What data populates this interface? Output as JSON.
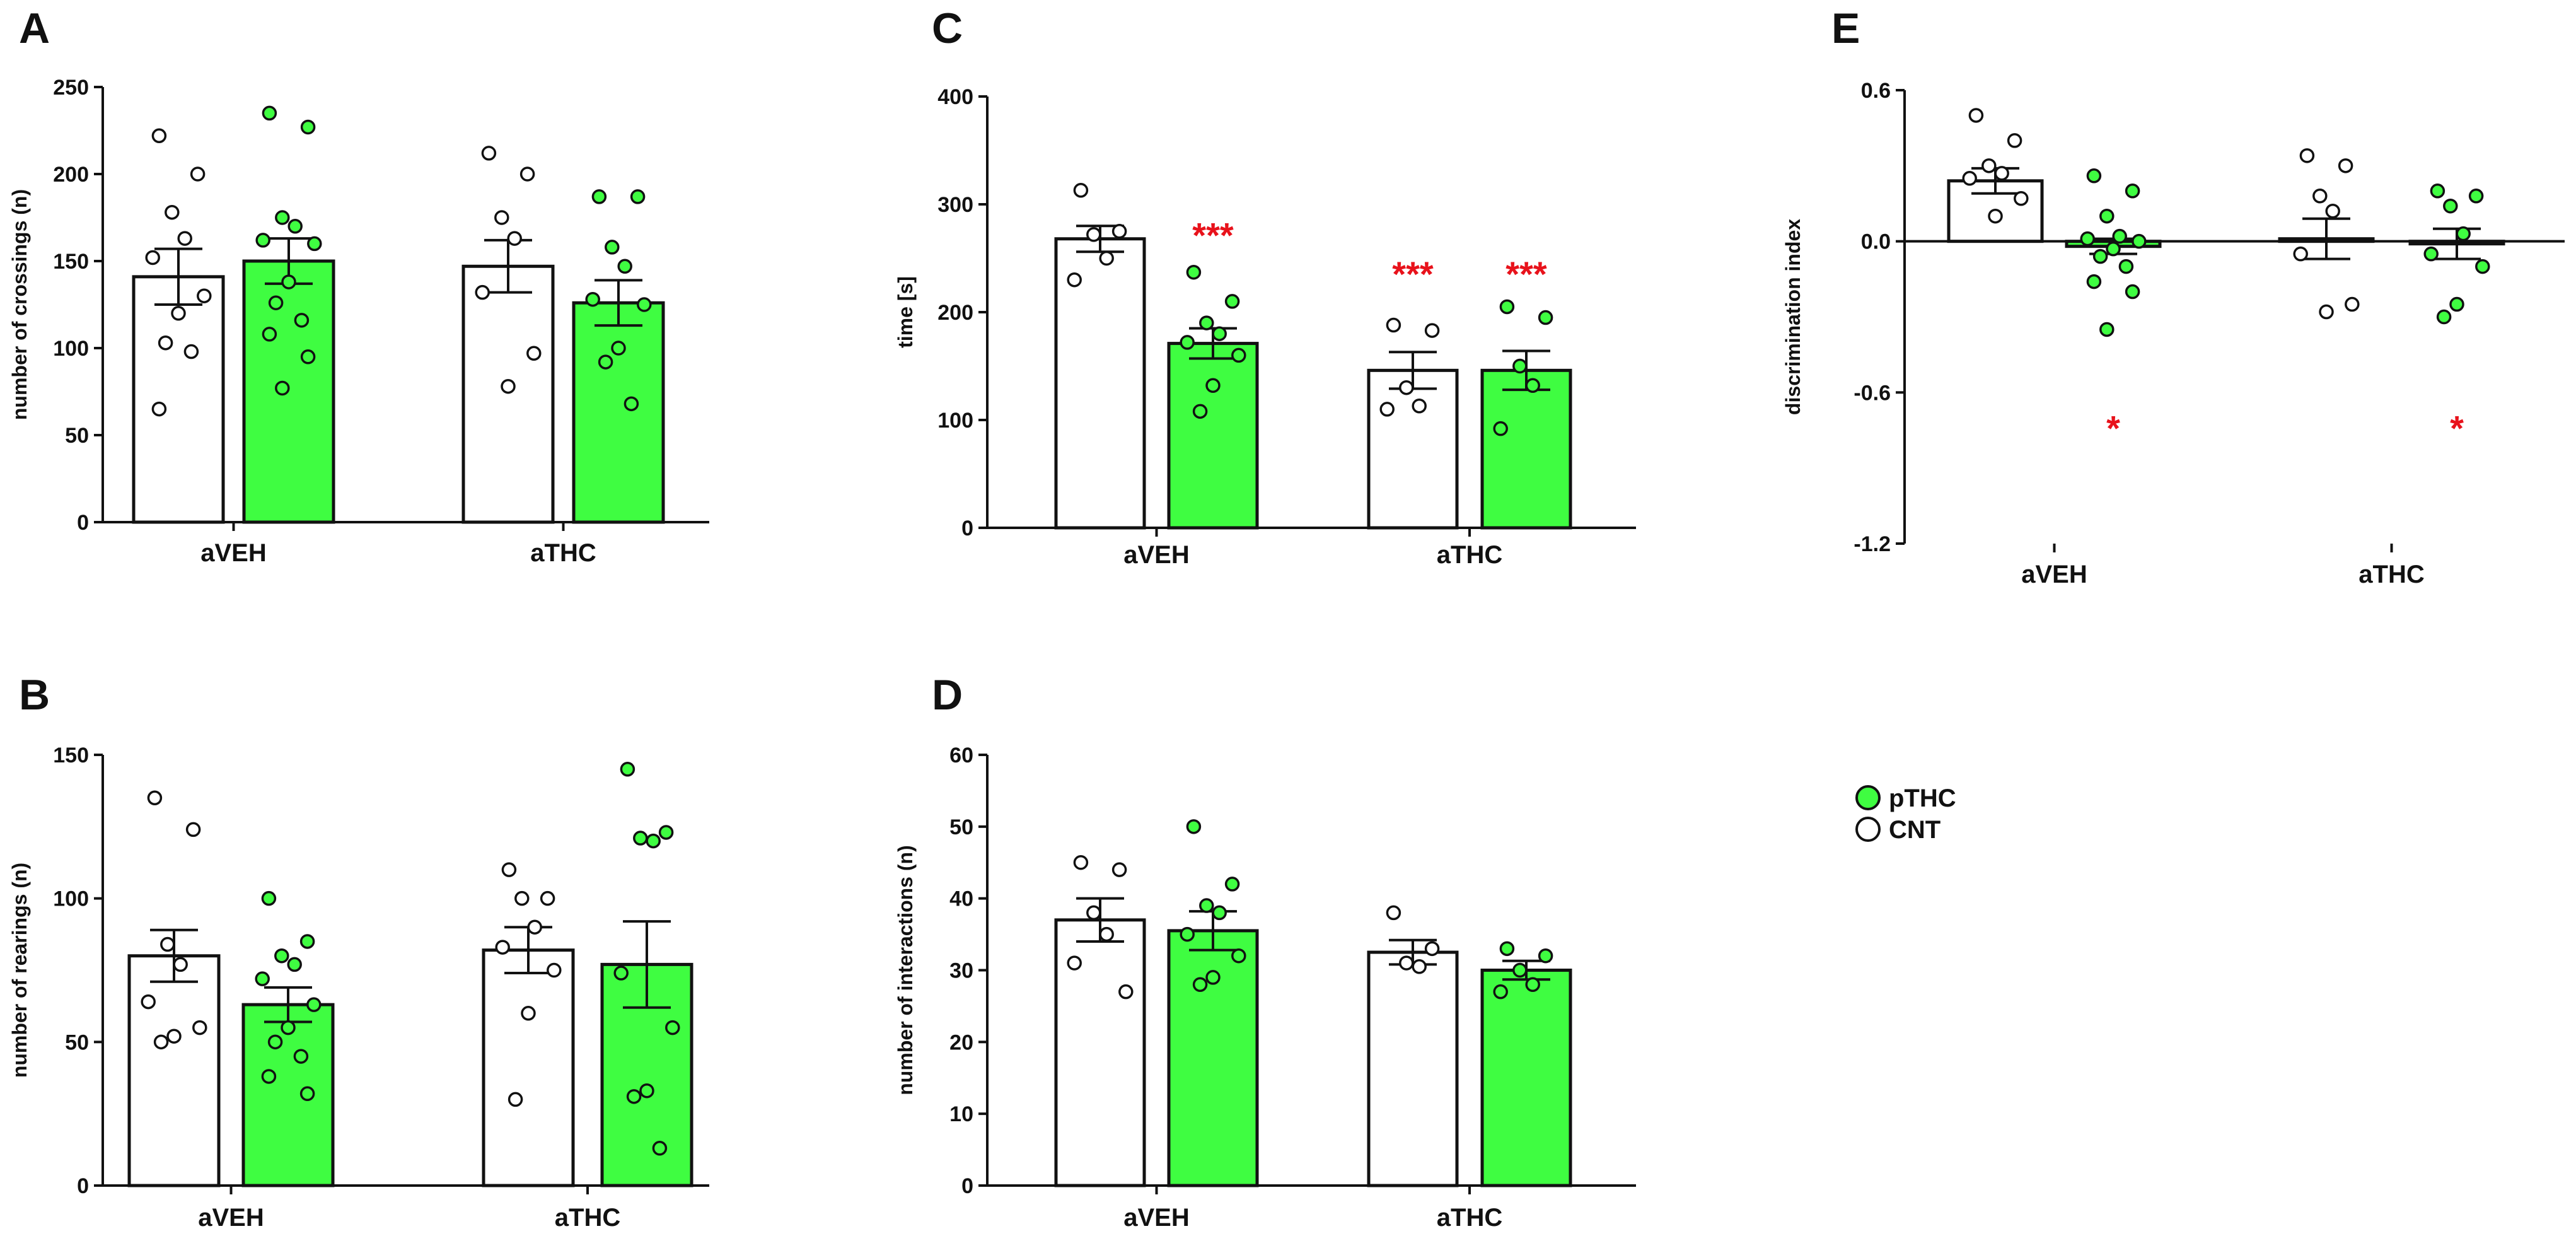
{
  "colors": {
    "cnt_fill": "#ffffff",
    "pthc_fill": "#3ffd41",
    "stroke": "#111111",
    "significance": "#e8121b"
  },
  "legend": {
    "items": [
      {
        "label": "pTHC",
        "color": "#3ffd41"
      },
      {
        "label": "CNT",
        "color": "#ffffff"
      }
    ]
  },
  "chart_data": [
    {
      "panel": "A",
      "type": "bar",
      "ylabel": "number of crossings (n)",
      "ylim": [
        0,
        250
      ],
      "yticks": [
        0,
        50,
        100,
        150,
        200,
        250
      ],
      "ytick_labels": [
        "0",
        "50",
        "100",
        "150",
        "200",
        "250"
      ],
      "categories": [
        "aVEH",
        "aTHC"
      ],
      "series": [
        {
          "name": "CNT",
          "values": [
            141,
            147
          ],
          "sem": [
            16,
            15
          ],
          "points": [
            [
              222,
              200,
              178,
              163,
              152,
              130,
              120,
              103,
              98,
              65
            ],
            [
              212,
              200,
              175,
              163,
              132,
              97,
              78
            ]
          ]
        },
        {
          "name": "pTHC",
          "values": [
            150,
            126
          ],
          "sem": [
            13,
            13
          ],
          "points": [
            [
              235,
              227,
              175,
              170,
              162,
              160,
              138,
              126,
              116,
              108,
              95,
              77
            ],
            [
              187,
              187,
              158,
              147,
              128,
              125,
              100,
              92,
              68
            ]
          ]
        }
      ],
      "annotations": []
    },
    {
      "panel": "B",
      "type": "bar",
      "ylabel": "number of rearings (n)",
      "ylim": [
        0,
        150
      ],
      "yticks": [
        0,
        50,
        100,
        150
      ],
      "ytick_labels": [
        "0",
        "50",
        "100",
        "150"
      ],
      "categories": [
        "aVEH",
        "aTHC"
      ],
      "series": [
        {
          "name": "CNT",
          "values": [
            80,
            82
          ],
          "sem": [
            9,
            8
          ],
          "points": [
            [
              135,
              124,
              84,
              77,
              64,
              55,
              52,
              50
            ],
            [
              110,
              100,
              100,
              90,
              83,
              75,
              60,
              30
            ]
          ]
        },
        {
          "name": "pTHC",
          "values": [
            63,
            77
          ],
          "sem": [
            6,
            15
          ],
          "points": [
            [
              100,
              85,
              80,
              77,
              72,
              63,
              55,
              50,
              45,
              38,
              32
            ],
            [
              145,
              123,
              121,
              120,
              74,
              55,
              33,
              31,
              13
            ]
          ]
        }
      ],
      "annotations": []
    },
    {
      "panel": "C",
      "type": "bar",
      "ylabel": "time [s]",
      "ylim": [
        0,
        400
      ],
      "yticks": [
        0,
        100,
        200,
        300,
        400
      ],
      "ytick_labels": [
        "0",
        "100",
        "200",
        "300",
        "400"
      ],
      "categories": [
        "aVEH",
        "aTHC"
      ],
      "series": [
        {
          "name": "CNT",
          "values": [
            268,
            146
          ],
          "sem": [
            12,
            17
          ],
          "points": [
            [
              313,
              275,
              272,
              250,
              230
            ],
            [
              188,
              183,
              130,
              113,
              110
            ]
          ]
        },
        {
          "name": "pTHC",
          "values": [
            171,
            146
          ],
          "sem": [
            14,
            18
          ],
          "points": [
            [
              237,
              210,
              190,
              180,
              172,
              160,
              132,
              108
            ],
            [
              205,
              195,
              150,
              132,
              92
            ]
          ]
        }
      ],
      "annotations": [
        {
          "label": "***",
          "category": "aVEH",
          "series": "pTHC",
          "value": 274
        },
        {
          "label": "***",
          "category": "aTHC",
          "series": "CNT",
          "value": 238
        },
        {
          "label": "***",
          "category": "aTHC",
          "series": "pTHC",
          "value": 238
        }
      ]
    },
    {
      "panel": "D",
      "type": "bar",
      "ylabel": "number of interactions (n)",
      "ylim": [
        0,
        60
      ],
      "yticks": [
        0,
        10,
        20,
        30,
        40,
        50,
        60
      ],
      "ytick_labels": [
        "0",
        "10",
        "20",
        "30",
        "40",
        "50",
        "60"
      ],
      "categories": [
        "aVEH",
        "aTHC"
      ],
      "series": [
        {
          "name": "CNT",
          "values": [
            37,
            32.5
          ],
          "sem": [
            3,
            1.7
          ],
          "points": [
            [
              45,
              44,
              38,
              35,
              31,
              27
            ],
            [
              38,
              33,
              31,
              30.5
            ]
          ]
        },
        {
          "name": "pTHC",
          "values": [
            35.5,
            30
          ],
          "sem": [
            2.7,
            1.3
          ],
          "points": [
            [
              50,
              42,
              39,
              38,
              35,
              32,
              29,
              28
            ],
            [
              33,
              32,
              30,
              28,
              27
            ]
          ]
        }
      ],
      "annotations": []
    },
    {
      "panel": "E",
      "type": "bar",
      "ylabel": "discrimination index",
      "ylim": [
        -1.2,
        0.6
      ],
      "yticks": [
        -1.2,
        -0.6,
        0.0,
        0.6
      ],
      "ytick_labels": [
        "-1.2",
        "-0.6",
        "0.0",
        "0.6"
      ],
      "categories": [
        "aVEH",
        "aTHC"
      ],
      "series": [
        {
          "name": "CNT",
          "values": [
            0.24,
            0.01
          ],
          "sem": [
            0.05,
            0.08
          ],
          "points": [
            [
              0.5,
              0.4,
              0.3,
              0.27,
              0.25,
              0.17,
              0.1
            ],
            [
              0.34,
              0.3,
              0.18,
              0.12,
              -0.05,
              -0.25,
              -0.28
            ]
          ]
        },
        {
          "name": "pTHC",
          "values": [
            -0.02,
            -0.01
          ],
          "sem": [
            0.03,
            0.06
          ],
          "points": [
            [
              0.26,
              0.2,
              0.1,
              0.02,
              0.01,
              0.0,
              -0.03,
              -0.06,
              -0.1,
              -0.16,
              -0.2,
              -0.35
            ],
            [
              0.2,
              0.18,
              0.14,
              0.03,
              -0.05,
              -0.1,
              -0.25,
              -0.3
            ]
          ]
        }
      ],
      "annotations": [
        {
          "label": "*",
          "category": "aVEH",
          "series": "pTHC",
          "value": -0.73
        },
        {
          "label": "*",
          "category": "aTHC",
          "series": "pTHC",
          "value": -0.73
        }
      ]
    }
  ]
}
